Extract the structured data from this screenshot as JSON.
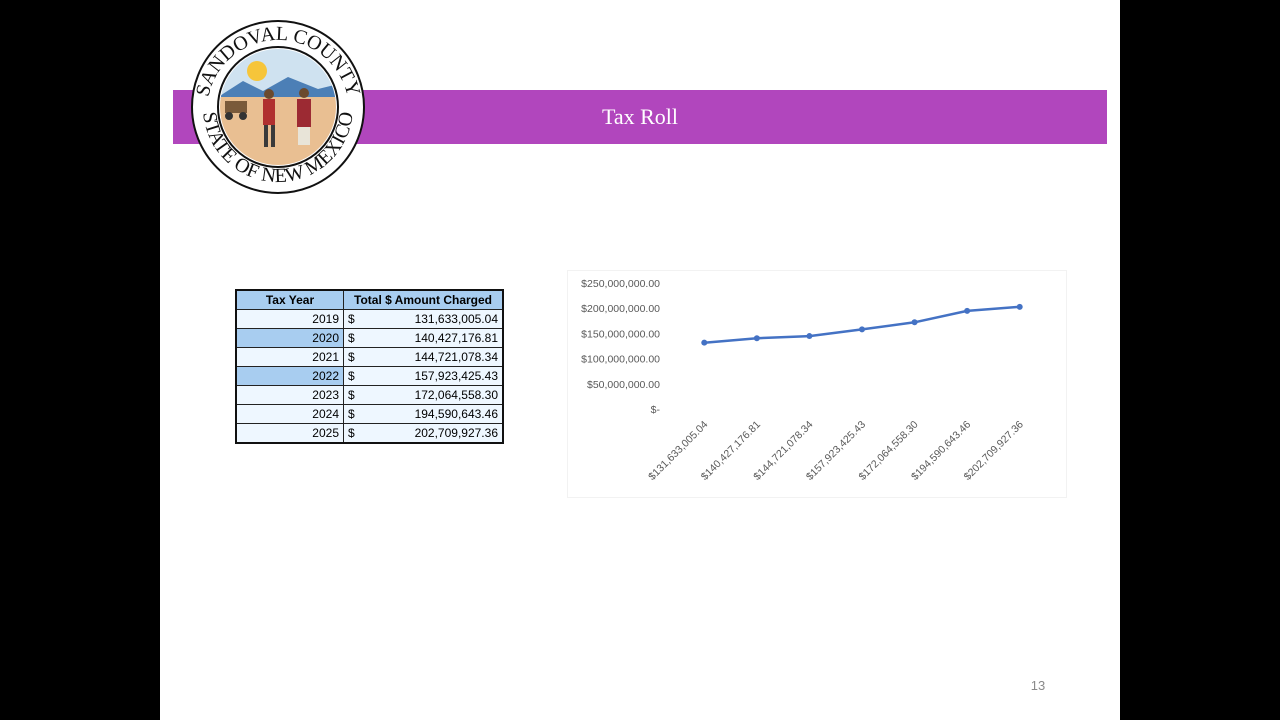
{
  "slide": {
    "title": "Tax Roll",
    "page_number": "13"
  },
  "seal": {
    "text_top": "SANDOVAL COUNTY",
    "text_bottom": "STATE OF NEW MEXICO"
  },
  "table": {
    "headers": [
      "Tax Year",
      "Total $ Amount Charged"
    ],
    "currency_symbol": "$",
    "rows": [
      {
        "year": "2019",
        "amount": "131,633,005.04"
      },
      {
        "year": "2020",
        "amount": "140,427,176.81"
      },
      {
        "year": "2021",
        "amount": "144,721,078.34"
      },
      {
        "year": "2022",
        "amount": "157,923,425.43"
      },
      {
        "year": "2023",
        "amount": "172,064,558.30"
      },
      {
        "year": "2024",
        "amount": "194,590,643.46"
      },
      {
        "year": "2025",
        "amount": "202,709,927.36"
      }
    ]
  },
  "chart_data": {
    "type": "line",
    "title": "",
    "xlabel": "",
    "ylabel": "",
    "ylim": [
      0,
      250000000
    ],
    "yticks": [
      0,
      50000000,
      100000000,
      150000000,
      200000000,
      250000000
    ],
    "ytick_labels": [
      "$-",
      "$50,000,000.00",
      "$100,000,000.00",
      "$150,000,000.00",
      "$200,000,000.00",
      "$250,000,000.00"
    ],
    "categories": [
      "$131,633,005.04",
      "$140,427,176.81",
      "$144,721,078.34",
      "$157,923,425.43",
      "$172,064,558.30",
      "$194,590,643.46",
      "$202,709,927.36"
    ],
    "values": [
      131633005.04,
      140427176.81,
      144721078.34,
      157923425.43,
      172064558.3,
      194590643.46,
      202709927.36
    ],
    "line_color": "#4472c4",
    "grid": false,
    "legend": "none"
  }
}
